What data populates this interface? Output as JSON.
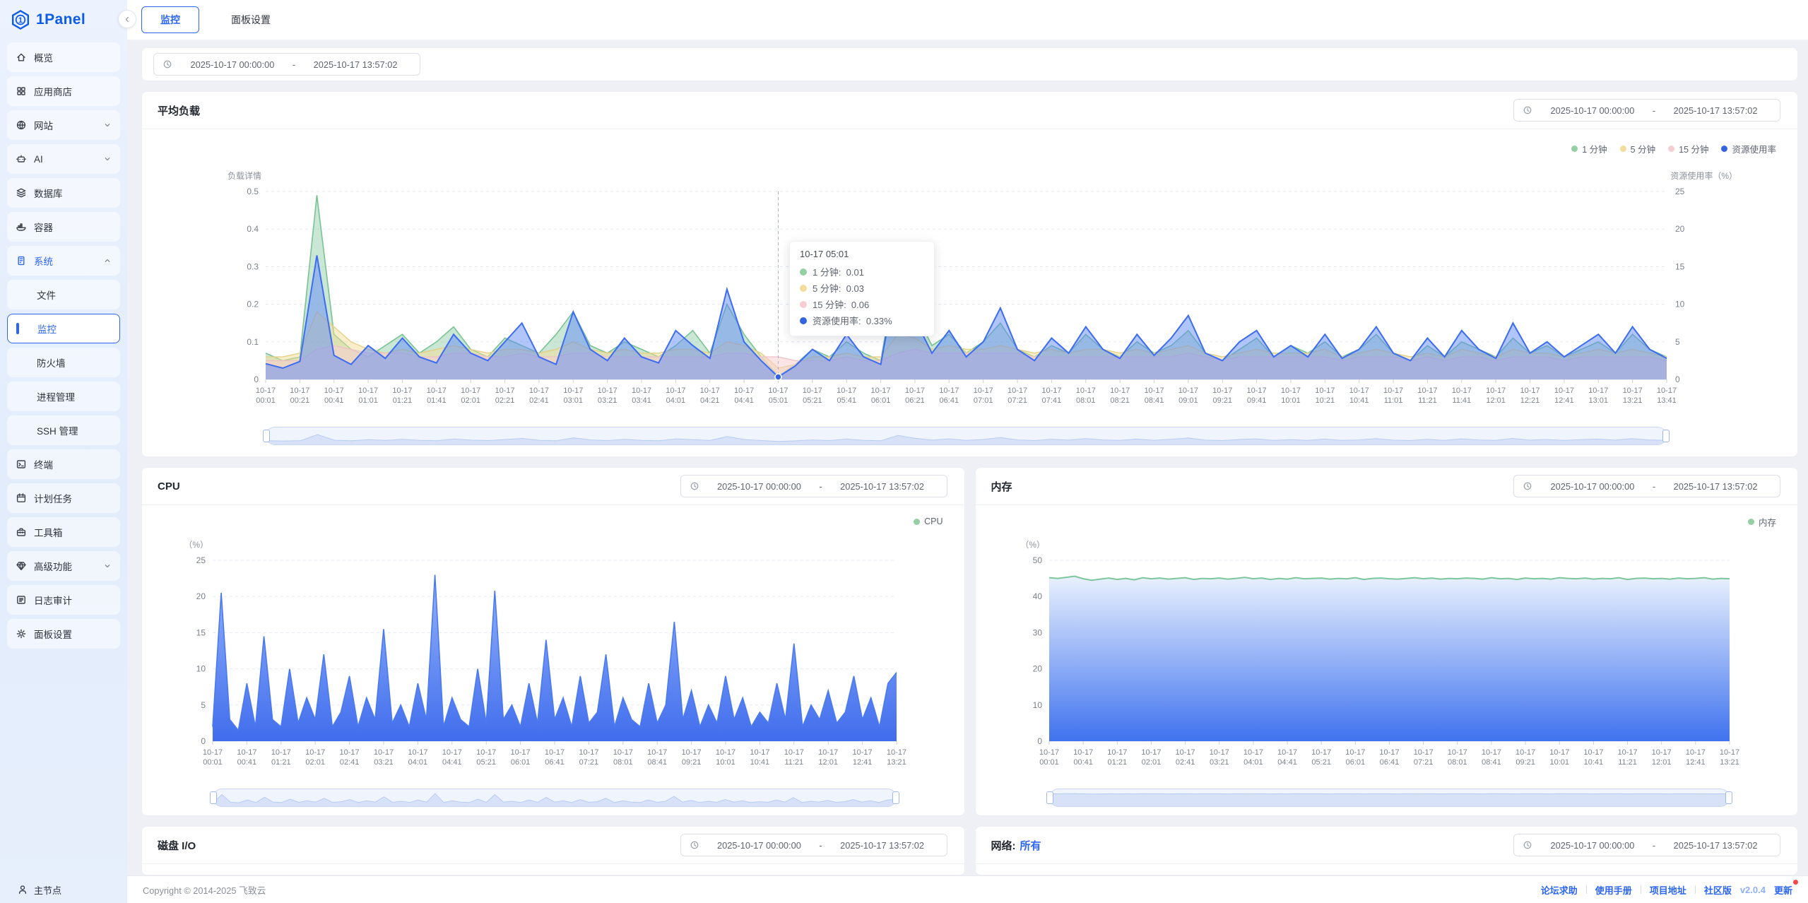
{
  "app": {
    "name": "1Panel",
    "accent": "#2d66f4"
  },
  "sidebar": {
    "items": [
      {
        "id": "overview",
        "icon": "home-icon",
        "label": "概览"
      },
      {
        "id": "app-store",
        "icon": "appstore-icon",
        "label": "应用商店"
      },
      {
        "id": "website",
        "icon": "globe-icon",
        "label": "网站",
        "chevron": "down"
      },
      {
        "id": "ai",
        "icon": "robot-icon",
        "label": "AI",
        "chevron": "down"
      },
      {
        "id": "database",
        "icon": "database-icon",
        "label": "数据库"
      },
      {
        "id": "container",
        "icon": "container-icon",
        "label": "容器"
      },
      {
        "id": "system",
        "icon": "server-icon",
        "label": "系统",
        "chevron": "up",
        "active": true,
        "children": [
          {
            "id": "files",
            "label": "文件"
          },
          {
            "id": "monitor",
            "label": "监控",
            "selected": true
          },
          {
            "id": "firewall",
            "label": "防火墙"
          },
          {
            "id": "process",
            "label": "进程管理"
          },
          {
            "id": "ssh",
            "label": "SSH 管理"
          }
        ]
      },
      {
        "id": "terminal",
        "icon": "terminal-icon",
        "label": "终端"
      },
      {
        "id": "cron",
        "icon": "calendar-icon",
        "label": "计划任务"
      },
      {
        "id": "toolbox",
        "icon": "toolbox-icon",
        "label": "工具箱"
      },
      {
        "id": "advanced",
        "icon": "diamond-icon",
        "label": "高级功能",
        "chevron": "down"
      },
      {
        "id": "logs",
        "icon": "log-icon",
        "label": "日志审计"
      },
      {
        "id": "settings",
        "icon": "gear-icon",
        "label": "面板设置"
      }
    ],
    "node": {
      "label": "主节点"
    }
  },
  "tabs": [
    {
      "id": "monitor",
      "label": "监控",
      "active": true
    },
    {
      "id": "panel-settings",
      "label": "面板设置",
      "active": false
    }
  ],
  "daterange": {
    "start": "2025-10-17 00:00:00",
    "separator": "-",
    "end": "2025-10-17 13:57:02"
  },
  "cards": {
    "disk_title": "磁盘 I/O",
    "net_title": "网络:",
    "net_all": "所有"
  },
  "tooltip": {
    "time": "10-17 05:01",
    "index": 30,
    "rows": [
      {
        "label": "1 分钟",
        "value": "0.01",
        "color": "#95d0a4"
      },
      {
        "label": "5 分钟",
        "value": "0.03",
        "color": "#f2dd9a"
      },
      {
        "label": "15 分钟",
        "value": "0.06",
        "color": "#f6cdd1"
      },
      {
        "label": "资源使用率",
        "value": "0.33%",
        "color": "#3564e0"
      }
    ]
  },
  "footer": {
    "copyright": "Copyright © 2014-2025 飞致云",
    "links": [
      "论坛求助",
      "使用手册",
      "项目地址"
    ],
    "edition": "社区版",
    "version": "v2.0.4",
    "update": "更新"
  },
  "chart_data": [
    {
      "id": "load",
      "type": "area",
      "title": "平均负载",
      "x_date": "10-17",
      "x_labels": [
        "00:01",
        "00:21",
        "00:41",
        "01:01",
        "01:21",
        "01:41",
        "02:01",
        "02:21",
        "02:41",
        "03:01",
        "03:21",
        "03:41",
        "04:01",
        "04:21",
        "04:41",
        "05:01",
        "05:21",
        "05:41",
        "06:01",
        "06:21",
        "06:41",
        "07:01",
        "07:21",
        "07:41",
        "08:01",
        "08:21",
        "08:41",
        "09:01",
        "09:21",
        "09:41",
        "10:01",
        "10:21",
        "10:41",
        "11:01",
        "11:21",
        "11:41",
        "12:01",
        "12:21",
        "12:41",
        "13:01",
        "13:21",
        "13:41"
      ],
      "y_left": {
        "name": "负载详情",
        "max": 0.5,
        "ticks": [
          "0.5",
          "0.4",
          "0.3",
          "0.2",
          "0.1",
          "0"
        ]
      },
      "y_right": {
        "name": "资源使用率（%）",
        "max": 25,
        "ticks": [
          "25",
          "20",
          "15",
          "10",
          "5",
          "0"
        ]
      },
      "marker": {
        "index": 30,
        "value": 0.33
      },
      "series": [
        {
          "name": "1 分钟",
          "axis": "left",
          "color": "#95d0a4",
          "stroke": "#79c393",
          "fill": "rgba(150,206,170,0.5)",
          "width": 1.6,
          "values": [
            0.07,
            0.05,
            0.06,
            0.49,
            0.12,
            0.08,
            0.06,
            0.09,
            0.12,
            0.07,
            0.1,
            0.14,
            0.08,
            0.06,
            0.11,
            0.09,
            0.07,
            0.12,
            0.18,
            0.09,
            0.07,
            0.1,
            0.08,
            0.06,
            0.09,
            0.13,
            0.07,
            0.2,
            0.12,
            0.06,
            0.01,
            0.04,
            0.08,
            0.06,
            0.1,
            0.07,
            0.05,
            0.31,
            0.18,
            0.09,
            0.12,
            0.07,
            0.1,
            0.15,
            0.08,
            0.06,
            0.09,
            0.07,
            0.12,
            0.08,
            0.06,
            0.1,
            0.07,
            0.09,
            0.13,
            0.07,
            0.05,
            0.08,
            0.11,
            0.06,
            0.09,
            0.07,
            0.1,
            0.06,
            0.08,
            0.12,
            0.07,
            0.05,
            0.09,
            0.06,
            0.1,
            0.08,
            0.06,
            0.11,
            0.07,
            0.09,
            0.06,
            0.08,
            0.1,
            0.07,
            0.12,
            0.08,
            0.06
          ]
        },
        {
          "name": "5 分钟",
          "axis": "left",
          "color": "#f2dd9a",
          "stroke": "#e3cf86",
          "fill": "rgba(243,221,150,0.5)",
          "width": 1.4,
          "values": [
            0.06,
            0.06,
            0.07,
            0.18,
            0.14,
            0.1,
            0.08,
            0.07,
            0.08,
            0.07,
            0.08,
            0.09,
            0.08,
            0.07,
            0.08,
            0.08,
            0.07,
            0.08,
            0.1,
            0.08,
            0.07,
            0.08,
            0.07,
            0.07,
            0.08,
            0.08,
            0.07,
            0.1,
            0.09,
            0.07,
            0.03,
            0.04,
            0.06,
            0.06,
            0.07,
            0.06,
            0.06,
            0.12,
            0.11,
            0.08,
            0.09,
            0.08,
            0.08,
            0.09,
            0.08,
            0.07,
            0.08,
            0.07,
            0.08,
            0.08,
            0.07,
            0.08,
            0.07,
            0.08,
            0.09,
            0.07,
            0.06,
            0.07,
            0.08,
            0.07,
            0.07,
            0.07,
            0.08,
            0.06,
            0.07,
            0.08,
            0.07,
            0.06,
            0.07,
            0.06,
            0.08,
            0.07,
            0.06,
            0.08,
            0.07,
            0.07,
            0.06,
            0.07,
            0.08,
            0.07,
            0.08,
            0.07,
            0.06
          ]
        },
        {
          "name": "15 分钟",
          "axis": "left",
          "color": "#f6cdd1",
          "stroke": "#eec3c8",
          "fill": "rgba(246,206,210,0.55)",
          "width": 1.4,
          "values": [
            0.05,
            0.05,
            0.05,
            0.08,
            0.09,
            0.08,
            0.07,
            0.07,
            0.07,
            0.06,
            0.06,
            0.07,
            0.07,
            0.06,
            0.06,
            0.07,
            0.06,
            0.06,
            0.07,
            0.07,
            0.06,
            0.06,
            0.06,
            0.06,
            0.06,
            0.06,
            0.06,
            0.07,
            0.07,
            0.06,
            0.06,
            0.05,
            0.05,
            0.05,
            0.06,
            0.05,
            0.05,
            0.07,
            0.08,
            0.07,
            0.07,
            0.07,
            0.07,
            0.07,
            0.07,
            0.06,
            0.06,
            0.06,
            0.06,
            0.06,
            0.06,
            0.06,
            0.06,
            0.06,
            0.07,
            0.06,
            0.05,
            0.06,
            0.06,
            0.06,
            0.06,
            0.06,
            0.06,
            0.05,
            0.06,
            0.06,
            0.06,
            0.05,
            0.06,
            0.05,
            0.06,
            0.06,
            0.05,
            0.06,
            0.06,
            0.06,
            0.05,
            0.06,
            0.06,
            0.06,
            0.06,
            0.06,
            0.05
          ]
        },
        {
          "name": "资源使用率",
          "axis": "right",
          "color": "#3564e0",
          "stroke": "#3d6cf2",
          "fill": "rgba(98,140,246,0.5)",
          "width": 2,
          "values": [
            2.1,
            1.5,
            2.4,
            16.5,
            3.2,
            2.0,
            4.5,
            2.8,
            5.5,
            3.0,
            2.2,
            6.0,
            3.5,
            2.5,
            5.0,
            7.5,
            3.0,
            2.0,
            9.0,
            4.0,
            2.5,
            5.5,
            3.0,
            2.2,
            6.5,
            4.5,
            2.8,
            12.0,
            5.0,
            2.5,
            0.33,
            1.8,
            4.0,
            2.5,
            6.0,
            3.0,
            2.0,
            14.5,
            8.0,
            3.5,
            6.5,
            3.0,
            5.0,
            9.5,
            4.0,
            2.5,
            5.5,
            3.5,
            7.0,
            4.0,
            2.8,
            6.0,
            3.2,
            5.5,
            8.5,
            3.5,
            2.5,
            5.0,
            6.5,
            3.0,
            4.5,
            3.0,
            6.0,
            2.8,
            4.0,
            7.0,
            3.5,
            2.5,
            5.5,
            3.0,
            6.5,
            4.0,
            2.8,
            7.5,
            3.5,
            5.0,
            3.0,
            4.5,
            6.0,
            3.5,
            7.0,
            4.0,
            2.8
          ]
        }
      ]
    },
    {
      "id": "cpu",
      "type": "area",
      "title": "CPU",
      "x_date": "10-17",
      "x_labels": [
        "00:01",
        "00:41",
        "01:21",
        "02:01",
        "02:41",
        "03:21",
        "04:01",
        "04:41",
        "05:21",
        "06:01",
        "06:41",
        "07:21",
        "08:01",
        "08:41",
        "09:21",
        "10:01",
        "10:41",
        "11:21",
        "12:01",
        "12:41",
        "13:21"
      ],
      "y_left": {
        "name": "（%）",
        "max": 25,
        "ticks": [
          "25",
          "20",
          "15",
          "10",
          "5",
          "0"
        ]
      },
      "series": [
        {
          "name": "CPU",
          "axis": "left",
          "color": "#95d0a4",
          "stroke": "#4a79f2",
          "fillTop": "rgba(126,163,247,0.85)",
          "fillBottom": "rgba(54,101,236,0.95)",
          "width": 1.6,
          "values": [
            2,
            20.5,
            3,
            1.5,
            8,
            2,
            14.5,
            3,
            2,
            10,
            2.5,
            6,
            3,
            12,
            2,
            4,
            9,
            2,
            6,
            3,
            15.5,
            2.5,
            5,
            2,
            8,
            3,
            23,
            2,
            6,
            3,
            2,
            10,
            2.5,
            20.8,
            3,
            5,
            2,
            8,
            2.5,
            14,
            3,
            6,
            2,
            9,
            2.5,
            4,
            12,
            2,
            6,
            3,
            2,
            8,
            2.5,
            5,
            16.5,
            3,
            7,
            2,
            5,
            2.5,
            9,
            3,
            6,
            2,
            4,
            2.5,
            8,
            3,
            13.5,
            2,
            5,
            3,
            7,
            2.5,
            4,
            9,
            3,
            6,
            2,
            8,
            9.5
          ]
        }
      ]
    },
    {
      "id": "mem",
      "type": "area",
      "title": "内存",
      "x_date": "10-17",
      "x_labels": [
        "00:01",
        "00:41",
        "01:21",
        "02:01",
        "02:41",
        "03:21",
        "04:01",
        "04:41",
        "05:21",
        "06:01",
        "06:41",
        "07:21",
        "08:01",
        "08:41",
        "09:21",
        "10:01",
        "10:41",
        "11:21",
        "12:01",
        "12:41",
        "13:21"
      ],
      "y_left": {
        "name": "（%）",
        "max": 50,
        "ticks": [
          "50",
          "40",
          "30",
          "20",
          "10",
          "0"
        ]
      },
      "series": [
        {
          "name": "内存",
          "axis": "left",
          "color": "#95d0a4",
          "stroke": "#7cc79a",
          "fillTop": "#e9f1fe",
          "fillBottom": "#3f72ee",
          "width": 2,
          "values": [
            45.2,
            45.0,
            45.3,
            45.6,
            44.9,
            44.5,
            44.8,
            45.1,
            44.7,
            45.0,
            44.6,
            45.2,
            44.9,
            45.1,
            44.8,
            45.0,
            45.2,
            44.7,
            45.0,
            44.9,
            45.1,
            44.8,
            45.0,
            45.3,
            44.9,
            45.1,
            44.7,
            45.0,
            44.8,
            45.2,
            44.9,
            45.0,
            45.1,
            44.8,
            45.0,
            44.9,
            45.2,
            44.7,
            45.0,
            45.1,
            44.9,
            44.8,
            45.0,
            45.2,
            44.9,
            45.1,
            44.8,
            45.0,
            44.9,
            45.1,
            45.0,
            44.8,
            45.2,
            44.9,
            45.0,
            44.7,
            45.1,
            44.9,
            45.0,
            44.8,
            45.2,
            45.0,
            44.9,
            45.1,
            44.8,
            45.0,
            44.9,
            45.2,
            44.7,
            45.0,
            45.1,
            44.9,
            45.0,
            44.8,
            45.1,
            44.9,
            45.0,
            45.2,
            44.8,
            45.0,
            44.9
          ]
        }
      ]
    }
  ]
}
